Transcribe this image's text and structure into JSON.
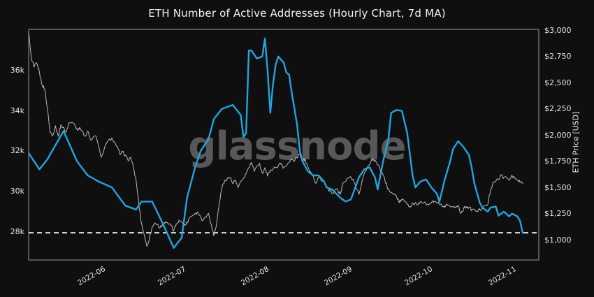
{
  "title": "ETH Number of Active Addresses (Hourly Chart, 7d MA)",
  "watermark": "glassnode",
  "colors": {
    "background": "#0f0f0f",
    "plot_border": "#999999",
    "addresses_line": "#20a4e0",
    "price_line": "#b8b8b8",
    "reference_line": "#ffffff",
    "tick_text": "#e6e6e6",
    "title_text": "#f2f2f2",
    "watermark_text": "#585858"
  },
  "chart_data": {
    "type": "line",
    "title": "ETH Number of Active Addresses (Hourly Chart, 7d MA)",
    "grid": false,
    "legend": "none",
    "x_axis": {
      "range": [
        "2022-05-05",
        "2022-11-11"
      ],
      "tick_values": [
        "2022-06-01",
        "2022-07-01",
        "2022-08-01",
        "2022-09-01",
        "2022-10-01",
        "2022-11-01"
      ],
      "tick_labels": [
        "2022-06",
        "2022-07",
        "2022-08",
        "2022-09",
        "2022-10",
        "2022-11"
      ]
    },
    "y_left": {
      "label": "",
      "range": [
        26600,
        38050
      ],
      "tick_values": [
        28000,
        30000,
        32000,
        34000,
        36000
      ],
      "tick_labels": [
        "28k",
        "30k",
        "32k",
        "34k",
        "36k"
      ]
    },
    "y_right": {
      "label": "ETH Price [USD]",
      "range": [
        810,
        3010
      ],
      "tick_values": [
        1000,
        1250,
        1500,
        1750,
        2000,
        2250,
        2500,
        2750,
        3000
      ],
      "tick_labels": [
        "$1,000",
        "$1,250",
        "$1,500",
        "$1,750",
        "$2,000",
        "$2,250",
        "$2,500",
        "$2,750",
        "$3,000"
      ]
    },
    "reference_line": {
      "axis": "left",
      "value": 27950,
      "style": "dashed",
      "color": "#ffffff"
    },
    "series": [
      {
        "name": "ETH Price [USD]",
        "axis": "right",
        "color": "#b8b8b8",
        "width": 1,
        "noisy": true,
        "points": [
          [
            "2022-05-05",
            2980
          ],
          [
            "2022-05-06",
            2725
          ],
          [
            "2022-05-07",
            2650
          ],
          [
            "2022-05-08",
            2690
          ],
          [
            "2022-05-09",
            2600
          ],
          [
            "2022-05-10",
            2480
          ],
          [
            "2022-05-11",
            2440
          ],
          [
            "2022-05-12",
            2250
          ],
          [
            "2022-05-13",
            2030
          ],
          [
            "2022-05-14",
            2000
          ],
          [
            "2022-05-15",
            2090
          ],
          [
            "2022-05-16",
            1990
          ],
          [
            "2022-05-17",
            2100
          ],
          [
            "2022-05-19",
            2030
          ],
          [
            "2022-05-20",
            2120
          ],
          [
            "2022-05-22",
            2110
          ],
          [
            "2022-05-23",
            2055
          ],
          [
            "2022-05-24",
            2075
          ],
          [
            "2022-05-26",
            1990
          ],
          [
            "2022-05-27",
            2040
          ],
          [
            "2022-05-28",
            1955
          ],
          [
            "2022-05-30",
            1995
          ],
          [
            "2022-06-01",
            1790
          ],
          [
            "2022-06-03",
            1925
          ],
          [
            "2022-06-05",
            1975
          ],
          [
            "2022-06-07",
            1890
          ],
          [
            "2022-06-08",
            1815
          ],
          [
            "2022-06-09",
            1840
          ],
          [
            "2022-06-10",
            1810
          ],
          [
            "2022-06-11",
            1760
          ],
          [
            "2022-06-12",
            1790
          ],
          [
            "2022-06-13",
            1690
          ],
          [
            "2022-06-14",
            1570
          ],
          [
            "2022-06-15",
            1355
          ],
          [
            "2022-06-16",
            1160
          ],
          [
            "2022-06-17",
            1055
          ],
          [
            "2022-06-18",
            940
          ],
          [
            "2022-06-19",
            1020
          ],
          [
            "2022-06-20",
            1120
          ],
          [
            "2022-06-21",
            1165
          ],
          [
            "2022-06-23",
            1120
          ],
          [
            "2022-06-24",
            1155
          ],
          [
            "2022-06-25",
            1165
          ],
          [
            "2022-06-27",
            1140
          ],
          [
            "2022-06-28",
            1085
          ],
          [
            "2022-06-29",
            1155
          ],
          [
            "2022-06-30",
            1190
          ],
          [
            "2022-07-02",
            1140
          ],
          [
            "2022-07-03",
            1165
          ],
          [
            "2022-07-04",
            1220
          ],
          [
            "2022-07-06",
            1255
          ],
          [
            "2022-07-07",
            1265
          ],
          [
            "2022-07-08",
            1220
          ],
          [
            "2022-07-09",
            1190
          ],
          [
            "2022-07-11",
            1255
          ],
          [
            "2022-07-12",
            1150
          ],
          [
            "2022-07-13",
            1040
          ],
          [
            "2022-07-14",
            1155
          ],
          [
            "2022-07-15",
            1355
          ],
          [
            "2022-07-16",
            1500
          ],
          [
            "2022-07-17",
            1570
          ],
          [
            "2022-07-19",
            1600
          ],
          [
            "2022-07-20",
            1540
          ],
          [
            "2022-07-21",
            1570
          ],
          [
            "2022-07-22",
            1500
          ],
          [
            "2022-07-24",
            1590
          ],
          [
            "2022-07-25",
            1635
          ],
          [
            "2022-07-26",
            1690
          ],
          [
            "2022-07-27",
            1740
          ],
          [
            "2022-07-28",
            1655
          ],
          [
            "2022-07-30",
            1735
          ],
          [
            "2022-07-31",
            1635
          ],
          [
            "2022-08-01",
            1690
          ],
          [
            "2022-08-02",
            1610
          ],
          [
            "2022-08-03",
            1670
          ],
          [
            "2022-08-05",
            1690
          ],
          [
            "2022-08-06",
            1710
          ],
          [
            "2022-08-07",
            1735
          ],
          [
            "2022-08-08",
            1690
          ],
          [
            "2022-08-10",
            1740
          ],
          [
            "2022-08-11",
            1770
          ],
          [
            "2022-08-12",
            1755
          ],
          [
            "2022-08-14",
            1820
          ],
          [
            "2022-08-15",
            1755
          ],
          [
            "2022-08-16",
            1770
          ],
          [
            "2022-08-17",
            1700
          ],
          [
            "2022-08-19",
            1610
          ],
          [
            "2022-08-20",
            1540
          ],
          [
            "2022-08-21",
            1600
          ],
          [
            "2022-08-23",
            1555
          ],
          [
            "2022-08-24",
            1500
          ],
          [
            "2022-08-25",
            1475
          ],
          [
            "2022-08-26",
            1440
          ],
          [
            "2022-08-28",
            1490
          ],
          [
            "2022-08-29",
            1435
          ],
          [
            "2022-08-30",
            1540
          ],
          [
            "2022-09-01",
            1590
          ],
          [
            "2022-09-02",
            1600
          ],
          [
            "2022-09-03",
            1570
          ],
          [
            "2022-09-05",
            1435
          ],
          [
            "2022-09-07",
            1635
          ],
          [
            "2022-09-08",
            1690
          ],
          [
            "2022-09-10",
            1775
          ],
          [
            "2022-09-11",
            1760
          ],
          [
            "2022-09-12",
            1720
          ],
          [
            "2022-09-14",
            1620
          ],
          [
            "2022-09-15",
            1540
          ],
          [
            "2022-09-16",
            1490
          ],
          [
            "2022-09-18",
            1435
          ],
          [
            "2022-09-19",
            1420
          ],
          [
            "2022-09-20",
            1355
          ],
          [
            "2022-09-21",
            1390
          ],
          [
            "2022-09-23",
            1340
          ],
          [
            "2022-09-24",
            1320
          ],
          [
            "2022-09-25",
            1355
          ],
          [
            "2022-09-27",
            1335
          ],
          [
            "2022-09-28",
            1370
          ],
          [
            "2022-09-29",
            1355
          ],
          [
            "2022-10-01",
            1335
          ],
          [
            "2022-10-02",
            1355
          ],
          [
            "2022-10-03",
            1370
          ],
          [
            "2022-10-05",
            1340
          ],
          [
            "2022-10-06",
            1320
          ],
          [
            "2022-10-07",
            1310
          ],
          [
            "2022-10-08",
            1335
          ],
          [
            "2022-10-10",
            1320
          ],
          [
            "2022-10-11",
            1310
          ],
          [
            "2022-10-12",
            1330
          ],
          [
            "2022-10-13",
            1255
          ],
          [
            "2022-10-14",
            1300
          ],
          [
            "2022-10-15",
            1320
          ],
          [
            "2022-10-16",
            1310
          ],
          [
            "2022-10-17",
            1290
          ],
          [
            "2022-10-19",
            1275
          ],
          [
            "2022-10-20",
            1290
          ],
          [
            "2022-10-21",
            1300
          ],
          [
            "2022-10-23",
            1340
          ],
          [
            "2022-10-24",
            1475
          ],
          [
            "2022-10-25",
            1555
          ],
          [
            "2022-10-27",
            1575
          ],
          [
            "2022-10-28",
            1620
          ],
          [
            "2022-10-29",
            1600
          ],
          [
            "2022-10-31",
            1570
          ],
          [
            "2022-11-01",
            1620
          ],
          [
            "2022-11-02",
            1590
          ],
          [
            "2022-11-03",
            1570
          ],
          [
            "2022-11-04",
            1555
          ],
          [
            "2022-11-05",
            1540
          ]
        ]
      },
      {
        "name": "Number of Active Addresses (7d MA)",
        "axis": "left",
        "color": "#20a4e0",
        "width": 2.4,
        "noisy": false,
        "points": [
          [
            "2022-05-05",
            31900
          ],
          [
            "2022-05-09",
            31100
          ],
          [
            "2022-05-12",
            31600
          ],
          [
            "2022-05-18",
            33000
          ],
          [
            "2022-05-23",
            31500
          ],
          [
            "2022-05-27",
            30800
          ],
          [
            "2022-05-31",
            30500
          ],
          [
            "2022-06-05",
            30200
          ],
          [
            "2022-06-10",
            29300
          ],
          [
            "2022-06-14",
            29100
          ],
          [
            "2022-06-16",
            29500
          ],
          [
            "2022-06-20",
            29500
          ],
          [
            "2022-06-24",
            28400
          ],
          [
            "2022-06-28",
            27200
          ],
          [
            "2022-07-01",
            27700
          ],
          [
            "2022-07-03",
            29700
          ],
          [
            "2022-07-06",
            31200
          ],
          [
            "2022-07-08",
            32000
          ],
          [
            "2022-07-11",
            32600
          ],
          [
            "2022-07-13",
            33600
          ],
          [
            "2022-07-16",
            34100
          ],
          [
            "2022-07-20",
            34300
          ],
          [
            "2022-07-23",
            33800
          ],
          [
            "2022-07-24",
            32700
          ],
          [
            "2022-07-25",
            32900
          ],
          [
            "2022-07-26",
            37000
          ],
          [
            "2022-07-27",
            37000
          ],
          [
            "2022-07-29",
            36600
          ],
          [
            "2022-07-31",
            36700
          ],
          [
            "2022-08-01",
            37600
          ],
          [
            "2022-08-02",
            36000
          ],
          [
            "2022-08-03",
            33900
          ],
          [
            "2022-08-04",
            35300
          ],
          [
            "2022-08-05",
            36300
          ],
          [
            "2022-08-06",
            36700
          ],
          [
            "2022-08-08",
            36400
          ],
          [
            "2022-08-09",
            35900
          ],
          [
            "2022-08-10",
            35800
          ],
          [
            "2022-08-11",
            34900
          ],
          [
            "2022-08-12",
            34100
          ],
          [
            "2022-08-13",
            33300
          ],
          [
            "2022-08-14",
            32000
          ],
          [
            "2022-08-15",
            31500
          ],
          [
            "2022-08-17",
            31000
          ],
          [
            "2022-08-19",
            30800
          ],
          [
            "2022-08-21",
            30800
          ],
          [
            "2022-08-23",
            30500
          ],
          [
            "2022-08-24",
            30200
          ],
          [
            "2022-08-26",
            30100
          ],
          [
            "2022-08-29",
            29700
          ],
          [
            "2022-08-31",
            29500
          ],
          [
            "2022-09-02",
            29600
          ],
          [
            "2022-09-05",
            30700
          ],
          [
            "2022-09-07",
            31100
          ],
          [
            "2022-09-09",
            31200
          ],
          [
            "2022-09-11",
            30700
          ],
          [
            "2022-09-12",
            30100
          ],
          [
            "2022-09-14",
            31500
          ],
          [
            "2022-09-16",
            32600
          ],
          [
            "2022-09-17",
            33900
          ],
          [
            "2022-09-19",
            34050
          ],
          [
            "2022-09-21",
            34000
          ],
          [
            "2022-09-23",
            32900
          ],
          [
            "2022-09-25",
            30800
          ],
          [
            "2022-09-26",
            30200
          ],
          [
            "2022-09-28",
            30500
          ],
          [
            "2022-09-30",
            30600
          ],
          [
            "2022-10-02",
            30200
          ],
          [
            "2022-10-04",
            29900
          ],
          [
            "2022-10-05",
            29500
          ],
          [
            "2022-10-07",
            30600
          ],
          [
            "2022-10-09",
            31500
          ],
          [
            "2022-10-10",
            32100
          ],
          [
            "2022-10-12",
            32500
          ],
          [
            "2022-10-14",
            32200
          ],
          [
            "2022-10-16",
            31800
          ],
          [
            "2022-10-17",
            31200
          ],
          [
            "2022-10-18",
            30400
          ],
          [
            "2022-10-20",
            29450
          ],
          [
            "2022-10-21",
            29200
          ],
          [
            "2022-10-23",
            29000
          ],
          [
            "2022-10-24",
            29200
          ],
          [
            "2022-10-26",
            29250
          ],
          [
            "2022-10-27",
            28800
          ],
          [
            "2022-10-29",
            29000
          ],
          [
            "2022-10-31",
            28760
          ],
          [
            "2022-11-01",
            28900
          ],
          [
            "2022-11-03",
            28760
          ],
          [
            "2022-11-04",
            28550
          ],
          [
            "2022-11-05",
            27950
          ]
        ]
      }
    ]
  }
}
